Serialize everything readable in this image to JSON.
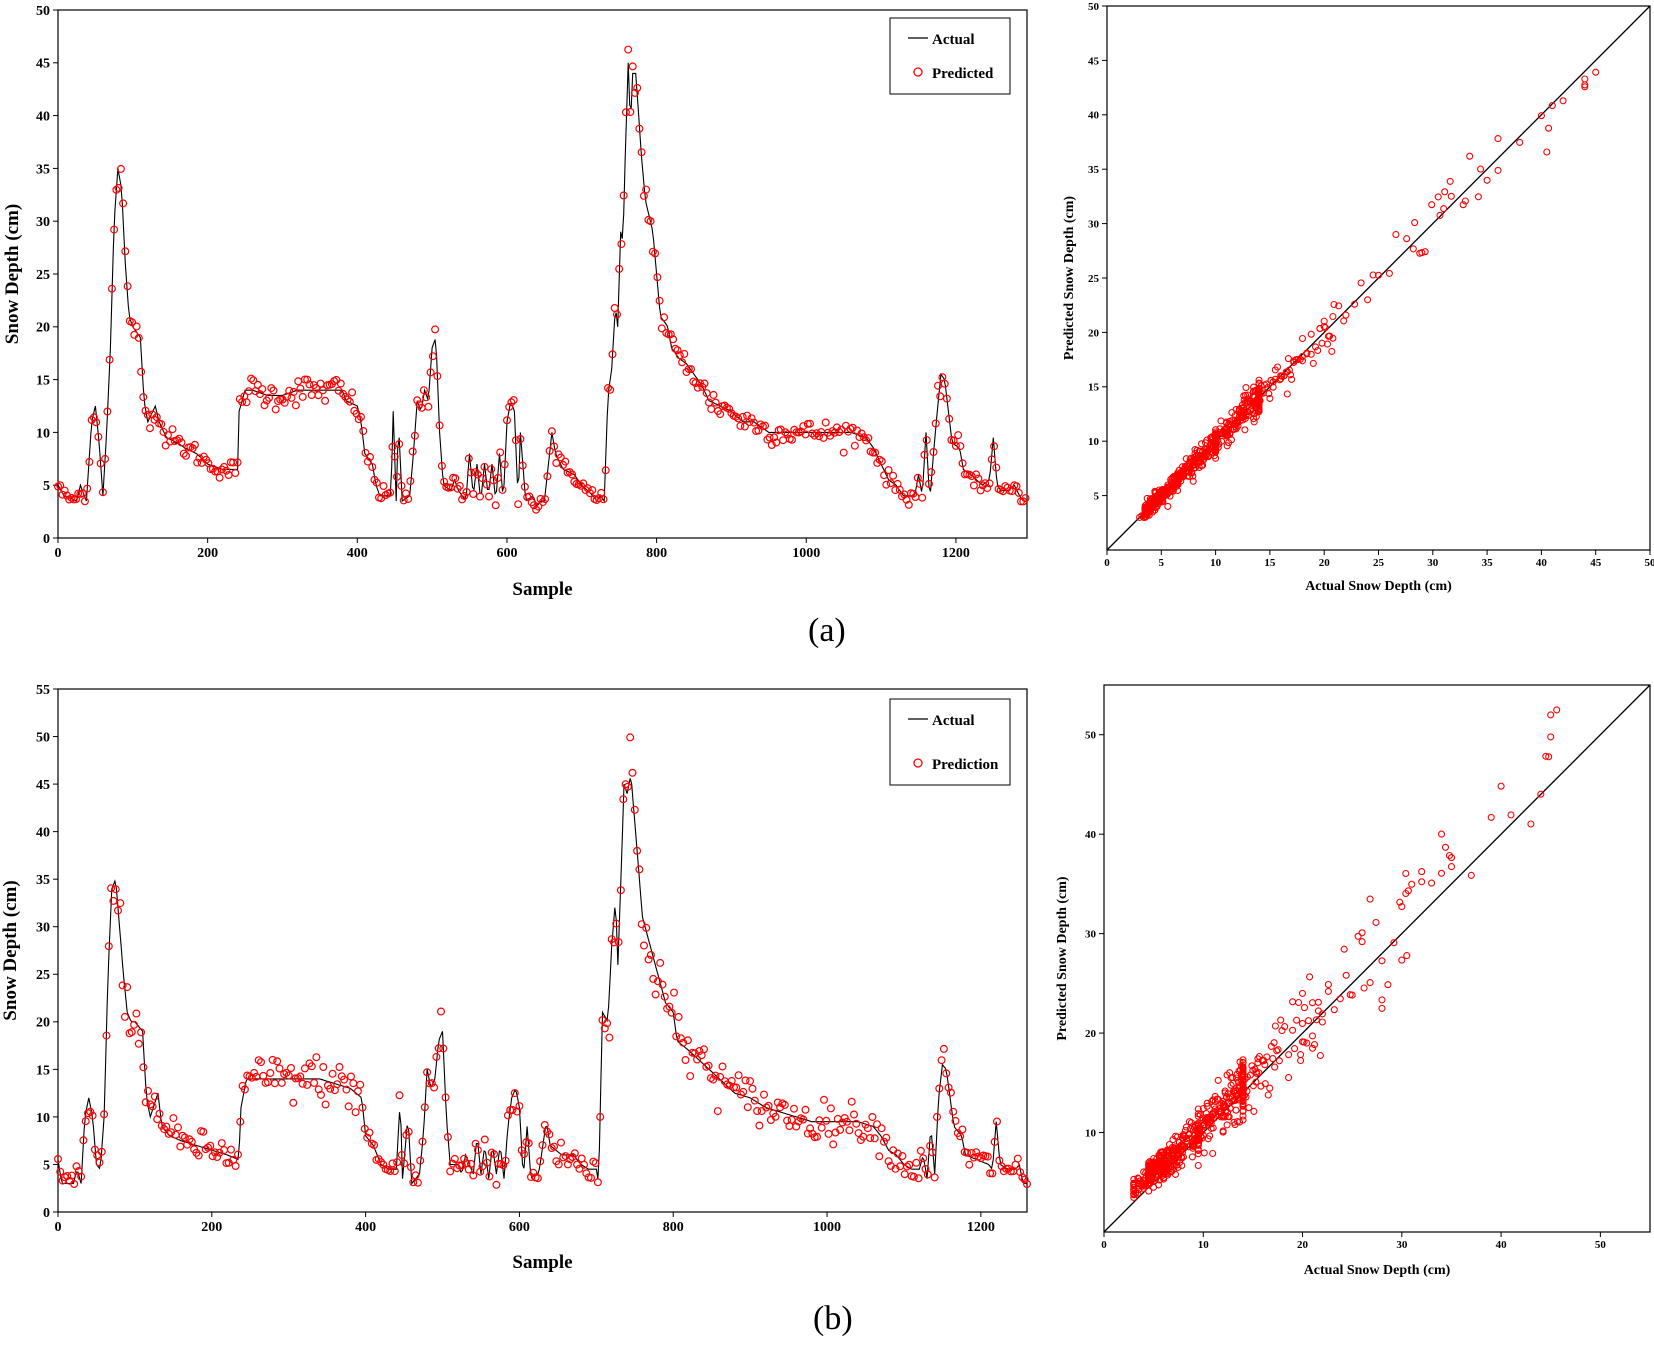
{
  "panel_labels": [
    "(a)",
    "(b)"
  ],
  "colors": {
    "actual": "#000000",
    "predicted": "#ff0000",
    "axis": "#000000"
  },
  "chart_data": [
    {
      "id": "a-timeseries",
      "type": "line",
      "title": "",
      "xlabel": "Sample",
      "ylabel": "Snow Depth (cm)",
      "xlim": [
        0,
        1295
      ],
      "ylim": [
        0,
        50
      ],
      "xticks": [
        0,
        200,
        400,
        600,
        800,
        1000,
        1200
      ],
      "yticks": [
        0,
        5,
        10,
        15,
        20,
        25,
        30,
        35,
        40,
        45,
        50
      ],
      "legend": {
        "position": "top-right",
        "entries": [
          "Actual",
          "Predicted"
        ]
      },
      "actual_keypoints": [
        [
          0,
          5
        ],
        [
          8,
          4
        ],
        [
          25,
          3.5
        ],
        [
          30,
          5
        ],
        [
          38,
          3.5
        ],
        [
          45,
          11
        ],
        [
          50,
          12.5
        ],
        [
          55,
          9
        ],
        [
          60,
          4
        ],
        [
          65,
          10
        ],
        [
          70,
          18
        ],
        [
          75,
          30
        ],
        [
          80,
          35
        ],
        [
          85,
          33
        ],
        [
          90,
          26
        ],
        [
          95,
          21
        ],
        [
          100,
          20
        ],
        [
          110,
          19
        ],
        [
          115,
          13
        ],
        [
          120,
          11
        ],
        [
          130,
          12.5
        ],
        [
          135,
          11
        ],
        [
          145,
          9.5
        ],
        [
          160,
          9
        ],
        [
          170,
          8.5
        ],
        [
          185,
          8
        ],
        [
          200,
          7
        ],
        [
          220,
          6.5
        ],
        [
          240,
          6.5
        ],
        [
          242,
          12
        ],
        [
          250,
          14
        ],
        [
          260,
          14
        ],
        [
          280,
          13.5
        ],
        [
          300,
          13.5
        ],
        [
          320,
          14
        ],
        [
          340,
          14
        ],
        [
          360,
          14
        ],
        [
          380,
          14
        ],
        [
          385,
          13
        ],
        [
          400,
          12.5
        ],
        [
          405,
          11
        ],
        [
          410,
          8
        ],
        [
          420,
          7
        ],
        [
          425,
          5
        ],
        [
          430,
          4
        ],
        [
          440,
          4
        ],
        [
          445,
          4
        ],
        [
          448,
          12
        ],
        [
          452,
          3.5
        ],
        [
          455,
          11
        ],
        [
          460,
          3.5
        ],
        [
          470,
          4
        ],
        [
          475,
          8
        ],
        [
          480,
          13
        ],
        [
          485,
          12
        ],
        [
          490,
          14
        ],
        [
          495,
          13
        ],
        [
          500,
          18
        ],
        [
          505,
          19
        ],
        [
          510,
          10
        ],
        [
          515,
          5
        ],
        [
          525,
          4.5
        ],
        [
          530,
          5.5
        ],
        [
          535,
          4.5
        ],
        [
          545,
          3.5
        ],
        [
          550,
          8
        ],
        [
          555,
          4
        ],
        [
          560,
          7
        ],
        [
          565,
          3.5
        ],
        [
          570,
          7
        ],
        [
          575,
          4
        ],
        [
          580,
          7
        ],
        [
          585,
          3.5
        ],
        [
          590,
          8
        ],
        [
          595,
          3.5
        ],
        [
          600,
          11
        ],
        [
          605,
          13
        ],
        [
          610,
          12
        ],
        [
          615,
          3.5
        ],
        [
          618,
          10
        ],
        [
          625,
          3.5
        ],
        [
          635,
          4
        ],
        [
          640,
          3
        ],
        [
          645,
          3.5
        ],
        [
          650,
          3.5
        ],
        [
          660,
          10
        ],
        [
          665,
          8
        ],
        [
          675,
          6.5
        ],
        [
          690,
          6
        ],
        [
          700,
          5
        ],
        [
          715,
          4
        ],
        [
          720,
          3.5
        ],
        [
          725,
          4
        ],
        [
          730,
          3.5
        ],
        [
          735,
          13.5
        ],
        [
          740,
          16
        ],
        [
          745,
          22
        ],
        [
          748,
          20
        ],
        [
          752,
          29
        ],
        [
          755,
          28
        ],
        [
          758,
          36
        ],
        [
          762,
          45
        ],
        [
          765,
          39
        ],
        [
          768,
          44
        ],
        [
          772,
          44
        ],
        [
          775,
          41
        ],
        [
          780,
          36
        ],
        [
          785,
          32
        ],
        [
          795,
          29
        ],
        [
          800,
          25
        ],
        [
          805,
          21
        ],
        [
          815,
          20
        ],
        [
          820,
          18
        ],
        [
          830,
          17
        ],
        [
          840,
          16.5
        ],
        [
          850,
          15.5
        ],
        [
          860,
          14.5
        ],
        [
          870,
          13
        ],
        [
          885,
          12.5
        ],
        [
          900,
          12
        ],
        [
          915,
          11
        ],
        [
          930,
          11
        ],
        [
          950,
          10
        ],
        [
          970,
          10
        ],
        [
          1000,
          10
        ],
        [
          1020,
          10
        ],
        [
          1040,
          10
        ],
        [
          1060,
          10
        ],
        [
          1080,
          9.5
        ],
        [
          1090,
          8.5
        ],
        [
          1100,
          7
        ],
        [
          1110,
          5.5
        ],
        [
          1120,
          5
        ],
        [
          1130,
          4
        ],
        [
          1145,
          4
        ],
        [
          1150,
          6
        ],
        [
          1155,
          4
        ],
        [
          1160,
          10
        ],
        [
          1165,
          3.5
        ],
        [
          1170,
          8
        ],
        [
          1175,
          12
        ],
        [
          1180,
          15.5
        ],
        [
          1185,
          15
        ],
        [
          1190,
          12
        ],
        [
          1195,
          9
        ],
        [
          1205,
          8.5
        ],
        [
          1210,
          6.5
        ],
        [
          1220,
          6
        ],
        [
          1235,
          5
        ],
        [
          1245,
          5.5
        ],
        [
          1250,
          9.5
        ],
        [
          1255,
          5
        ],
        [
          1260,
          4.5
        ],
        [
          1270,
          4.5
        ],
        [
          1278,
          5
        ],
        [
          1285,
          4
        ],
        [
          1290,
          3.5
        ],
        [
          1295,
          3.5
        ]
      ]
    },
    {
      "id": "a-scatter",
      "type": "scatter",
      "title": "",
      "xlabel": "Actual Snow Depth (cm)",
      "ylabel": "Predicted Snow Depth (cm)",
      "xlim": [
        0,
        50
      ],
      "ylim": [
        0,
        50
      ],
      "xticks": [
        0,
        5,
        10,
        15,
        20,
        25,
        30,
        35,
        40,
        45,
        50
      ],
      "yticks": [
        5,
        10,
        15,
        20,
        25,
        30,
        35,
        40,
        45,
        50
      ],
      "reference_line": [
        [
          0,
          0
        ],
        [
          50,
          50
        ]
      ]
    },
    {
      "id": "b-timeseries",
      "type": "line",
      "title": "",
      "xlabel": "Sample",
      "ylabel": "Snow Depth (cm)",
      "xlim": [
        0,
        1260
      ],
      "ylim": [
        0,
        55
      ],
      "xticks": [
        0,
        200,
        400,
        600,
        800,
        1000,
        1200
      ],
      "yticks": [
        0,
        5,
        10,
        15,
        20,
        25,
        30,
        35,
        40,
        45,
        50,
        55
      ],
      "legend": {
        "position": "top-right",
        "entries": [
          "Actual",
          "Prediction"
        ]
      },
      "actual_keypoints": [
        [
          0,
          5.5
        ],
        [
          5,
          3
        ],
        [
          20,
          3
        ],
        [
          25,
          4.5
        ],
        [
          30,
          3
        ],
        [
          35,
          10
        ],
        [
          40,
          12
        ],
        [
          45,
          10
        ],
        [
          50,
          5
        ],
        [
          55,
          4.5
        ],
        [
          60,
          10
        ],
        [
          65,
          25
        ],
        [
          70,
          34
        ],
        [
          75,
          35
        ],
        [
          80,
          30
        ],
        [
          85,
          25
        ],
        [
          90,
          21
        ],
        [
          95,
          20
        ],
        [
          100,
          20
        ],
        [
          110,
          19
        ],
        [
          115,
          12
        ],
        [
          120,
          10
        ],
        [
          130,
          12.5
        ],
        [
          135,
          9
        ],
        [
          145,
          8
        ],
        [
          160,
          7.5
        ],
        [
          180,
          7
        ],
        [
          200,
          6.5
        ],
        [
          220,
          6
        ],
        [
          235,
          5.5
        ],
        [
          238,
          11
        ],
        [
          245,
          14
        ],
        [
          260,
          14
        ],
        [
          280,
          14
        ],
        [
          300,
          14
        ],
        [
          320,
          14
        ],
        [
          340,
          14
        ],
        [
          360,
          13.5
        ],
        [
          380,
          13
        ],
        [
          395,
          12
        ],
        [
          400,
          8
        ],
        [
          410,
          7
        ],
        [
          420,
          5
        ],
        [
          430,
          4.5
        ],
        [
          440,
          4.5
        ],
        [
          445,
          12
        ],
        [
          448,
          3.5
        ],
        [
          455,
          10
        ],
        [
          460,
          3
        ],
        [
          470,
          4
        ],
        [
          475,
          8
        ],
        [
          480,
          15
        ],
        [
          485,
          13
        ],
        [
          490,
          14
        ],
        [
          495,
          18
        ],
        [
          500,
          19
        ],
        [
          505,
          10
        ],
        [
          510,
          5
        ],
        [
          520,
          5
        ],
        [
          525,
          4
        ],
        [
          530,
          6
        ],
        [
          540,
          4
        ],
        [
          545,
          8
        ],
        [
          550,
          4
        ],
        [
          555,
          7
        ],
        [
          560,
          3.5
        ],
        [
          565,
          7
        ],
        [
          570,
          4
        ],
        [
          575,
          7
        ],
        [
          580,
          3.5
        ],
        [
          585,
          9
        ],
        [
          590,
          12
        ],
        [
          595,
          13
        ],
        [
          600,
          11
        ],
        [
          605,
          3.5
        ],
        [
          610,
          9
        ],
        [
          615,
          3.5
        ],
        [
          620,
          4
        ],
        [
          625,
          4
        ],
        [
          635,
          9.5
        ],
        [
          640,
          7
        ],
        [
          655,
          6
        ],
        [
          670,
          6
        ],
        [
          680,
          5
        ],
        [
          690,
          4.5
        ],
        [
          700,
          4.5
        ],
        [
          703,
          3
        ],
        [
          708,
          21
        ],
        [
          715,
          20
        ],
        [
          720,
          28
        ],
        [
          725,
          33
        ],
        [
          728,
          26
        ],
        [
          732,
          35
        ],
        [
          736,
          45
        ],
        [
          740,
          44
        ],
        [
          745,
          46
        ],
        [
          750,
          41
        ],
        [
          755,
          36
        ],
        [
          760,
          31
        ],
        [
          770,
          28
        ],
        [
          780,
          25
        ],
        [
          790,
          22
        ],
        [
          800,
          21
        ],
        [
          805,
          18
        ],
        [
          820,
          17
        ],
        [
          840,
          15.5
        ],
        [
          860,
          14
        ],
        [
          880,
          12.5
        ],
        [
          900,
          12
        ],
        [
          920,
          11
        ],
        [
          940,
          10.5
        ],
        [
          960,
          10
        ],
        [
          980,
          9.5
        ],
        [
          1000,
          9.5
        ],
        [
          1020,
          9.5
        ],
        [
          1040,
          9.5
        ],
        [
          1060,
          9
        ],
        [
          1070,
          8
        ],
        [
          1080,
          6.5
        ],
        [
          1090,
          6
        ],
        [
          1100,
          5
        ],
        [
          1110,
          4.5
        ],
        [
          1120,
          4.5
        ],
        [
          1125,
          6
        ],
        [
          1130,
          3.5
        ],
        [
          1135,
          9
        ],
        [
          1140,
          4
        ],
        [
          1145,
          12
        ],
        [
          1150,
          15.5
        ],
        [
          1155,
          15
        ],
        [
          1160,
          12
        ],
        [
          1165,
          9
        ],
        [
          1175,
          8
        ],
        [
          1180,
          6
        ],
        [
          1195,
          5.5
        ],
        [
          1210,
          5
        ],
        [
          1215,
          4.5
        ],
        [
          1220,
          9.5
        ],
        [
          1225,
          5
        ],
        [
          1235,
          4.5
        ],
        [
          1245,
          4.5
        ],
        [
          1250,
          5
        ],
        [
          1255,
          3
        ],
        [
          1260,
          3
        ]
      ]
    },
    {
      "id": "b-scatter",
      "type": "scatter",
      "title": "",
      "xlabel": "Actual Snow Depth (cm)",
      "ylabel": "Predicted Snow Depth (cm)",
      "xlim": [
        0,
        55
      ],
      "ylim": [
        0,
        55
      ],
      "xticks": [
        0,
        10,
        20,
        30,
        40,
        50
      ],
      "yticks": [
        10,
        20,
        30,
        40,
        50
      ],
      "reference_line": [
        [
          0,
          0
        ],
        [
          55,
          55
        ]
      ]
    }
  ]
}
